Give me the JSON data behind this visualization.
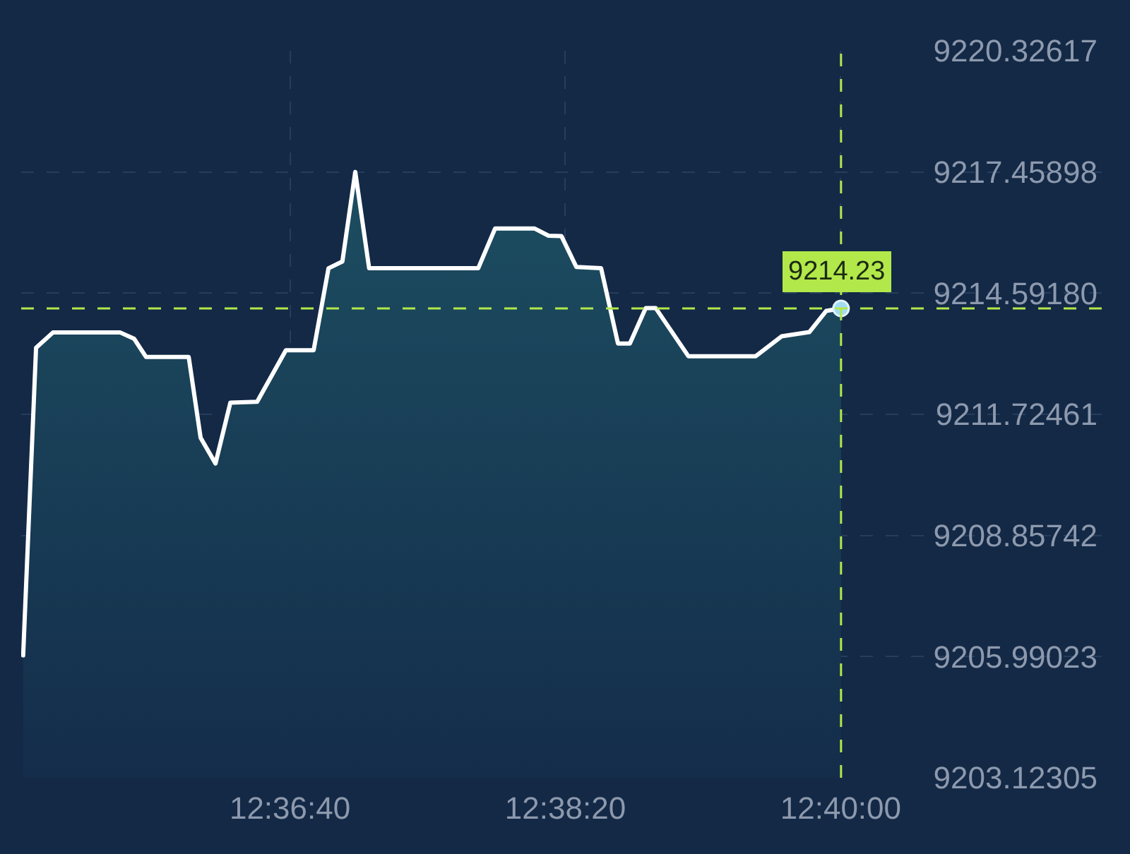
{
  "chart_data": {
    "type": "area",
    "x": [
      12.5842,
      12.5855,
      12.5872,
      12.594,
      12.5954,
      12.5966,
      12.6009,
      12.6021,
      12.6036,
      12.6051,
      12.6078,
      12.6107,
      12.6135,
      12.615,
      12.6164,
      12.6177,
      12.6191,
      12.6301,
      12.6318,
      12.6358,
      12.6372,
      12.6385,
      12.64,
      12.6425,
      12.6442,
      12.6454,
      12.647,
      12.648,
      12.6513,
      12.6581,
      12.6607,
      12.6635,
      12.6652,
      12.6667
    ],
    "series": [
      {
        "color": "#ffffff",
        "values": [
          9206.02,
          9213.3,
          9213.66,
          9213.66,
          9213.51,
          9213.08,
          9213.08,
          9211.17,
          9210.56,
          9212.0,
          9212.02,
          9213.24,
          9213.24,
          9215.18,
          9215.34,
          9217.46,
          9215.18,
          9215.18,
          9216.12,
          9216.12,
          9215.95,
          9215.94,
          9215.21,
          9215.18,
          9213.4,
          9213.4,
          9214.24,
          9214.24,
          9213.1,
          9213.1,
          9213.57,
          9213.67,
          9214.17,
          9214.23
        ]
      },
      {
        "type": "scatter",
        "marker": "circle",
        "color": "#a3dcf2",
        "x": [
          12.6667
        ],
        "values": [
          9214.23
        ]
      }
    ],
    "xlim": [
      12.584,
      12.693
    ],
    "xticks": [
      {
        "value": 12.611111,
        "label": "12:36:40"
      },
      {
        "value": 12.638889,
        "label": "12:38:20"
      },
      {
        "value": 12.666667,
        "label": "12:40:00"
      }
    ],
    "ylim": [
      9203.12305,
      9220.32617
    ],
    "yticks": [
      9203.12305,
      9205.99023,
      9208.85742,
      9211.72461,
      {
        "value": 9214.5918,
        "label": "9214.59180"
      },
      9217.45898,
      9220.32617
    ],
    "grid": true,
    "ref_lines": [
      {
        "axis": "y",
        "value": 9214.23,
        "color": "#b2e84a",
        "line_style": "dashed"
      },
      {
        "axis": "x",
        "value": 12.6667,
        "color": "#b2e84a",
        "line_style": "dashed"
      }
    ],
    "annotations": [
      {
        "text": "9214.23",
        "x": 12.6667,
        "y": 9214.23
      }
    ]
  }
}
